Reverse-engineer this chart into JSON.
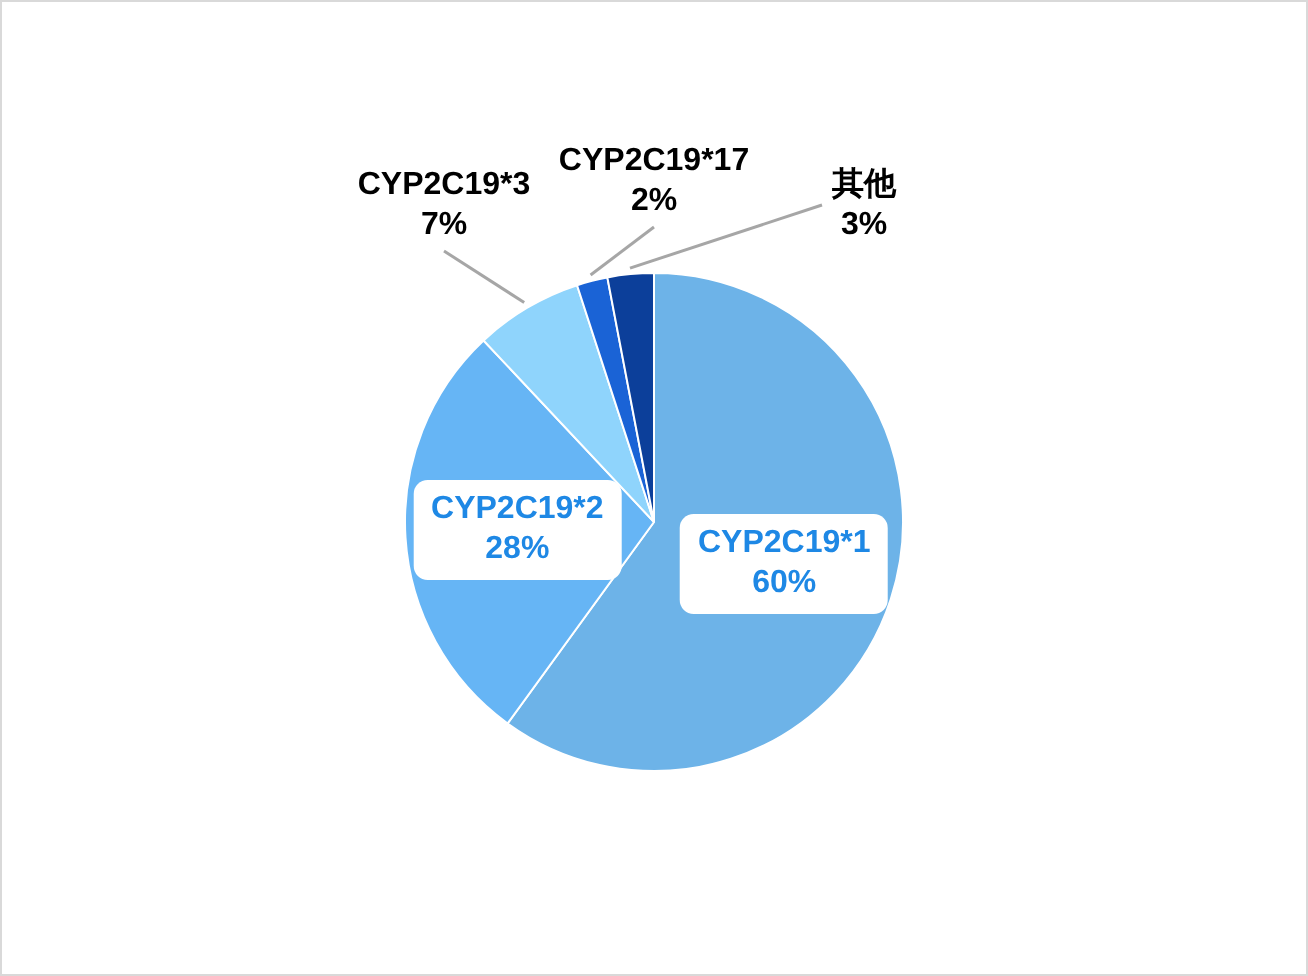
{
  "chart_data": {
    "type": "pie",
    "categories": [
      "CYP2C19*1",
      "CYP2C19*2",
      "CYP2C19*3",
      "CYP2C19*17",
      "其他"
    ],
    "values": [
      60,
      28,
      7,
      2,
      3
    ],
    "colors": [
      "#6db3e8",
      "#66b5f5",
      "#8fd4fc",
      "#1a63d6",
      "#0c3f9a"
    ],
    "value_labels": [
      "60%",
      "28%",
      "7%",
      "2%",
      "3%"
    ]
  }
}
